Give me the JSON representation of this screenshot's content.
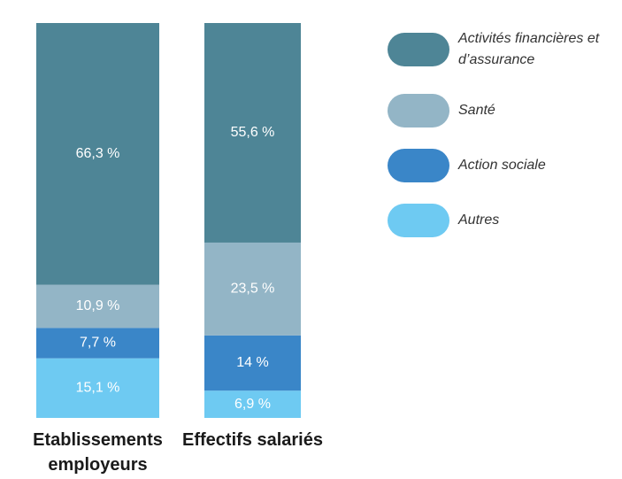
{
  "chart_data": {
    "type": "stacked_bar",
    "categories": [
      "Etablissements employeurs",
      "Effectifs salariés"
    ],
    "ylim": [
      0,
      100
    ],
    "series": [
      {
        "name": "Activités financières et d’assurance",
        "color": "#4e8596",
        "values": [
          66.3,
          55.6
        ],
        "value_labels": [
          "66,3 %",
          "55,6 %"
        ]
      },
      {
        "name": "Santé",
        "color": "#93b5c6",
        "values": [
          10.9,
          23.5
        ],
        "value_labels": [
          "10,9 %",
          "23,5 %"
        ]
      },
      {
        "name": "Action sociale",
        "color": "#3a86c8",
        "values": [
          7.7,
          14
        ],
        "value_labels": [
          "7,7 %",
          "14 %"
        ]
      },
      {
        "name": "Autres",
        "color": "#6ecaf2",
        "values": [
          15.1,
          6.9
        ],
        "value_labels": [
          "15,1 %",
          "6,9 %"
        ]
      }
    ]
  }
}
